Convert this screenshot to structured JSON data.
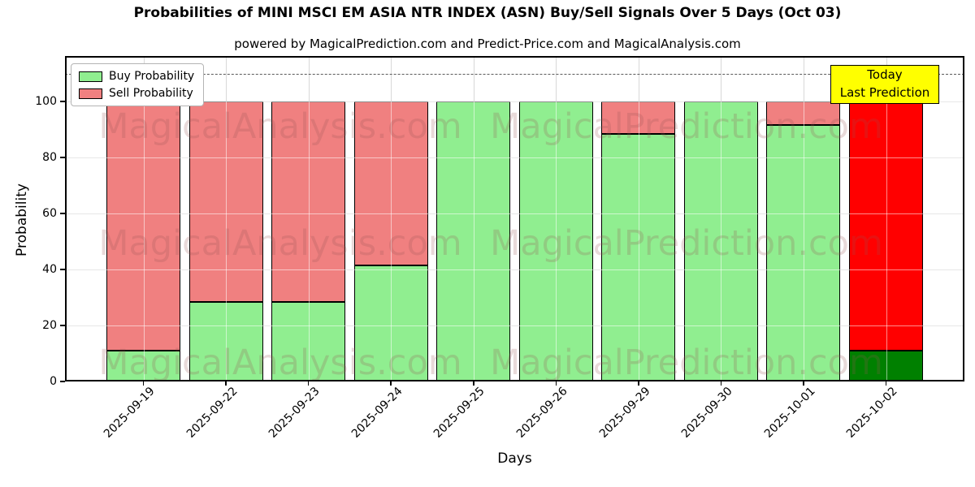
{
  "chart_data": {
    "type": "bar",
    "stacked": true,
    "title": "Probabilities of MINI MSCI EM ASIA NTR INDEX (ASN) Buy/Sell Signals Over 5 Days (Oct 03)",
    "subtitle": "powered by MagicalPrediction.com and Predict-Price.com and MagicalAnalysis.com",
    "xlabel": "Days",
    "ylabel": "Probability",
    "categories": [
      "2025-09-19",
      "2025-09-22",
      "2025-09-23",
      "2025-09-24",
      "2025-09-25",
      "2025-09-26",
      "2025-09-29",
      "2025-09-30",
      "2025-10-01",
      "2025-10-02"
    ],
    "series": [
      {
        "name": "Buy Probability",
        "color": "#90ee90",
        "values": [
          11,
          28.5,
          28.5,
          41.5,
          100,
          100,
          88.5,
          100,
          91.5,
          11
        ]
      },
      {
        "name": "Sell Probability",
        "color": "#f08080",
        "values": [
          89,
          71.5,
          71.5,
          58.5,
          0,
          0,
          11.5,
          0,
          8.5,
          89
        ]
      }
    ],
    "last_bar_colors": {
      "buy": "#008000",
      "sell": "#ff0000"
    },
    "yticks": [
      0,
      20,
      40,
      60,
      80,
      100
    ],
    "ylim": [
      0,
      116
    ],
    "dashed_line_y": 110,
    "grid": true,
    "legend_position": "upper left"
  },
  "annotation": {
    "line1": "Today",
    "line2": "Last Prediction"
  },
  "watermarks": {
    "left": "MagicalAnalysis.com",
    "right": "MagicalPrediction.com"
  }
}
